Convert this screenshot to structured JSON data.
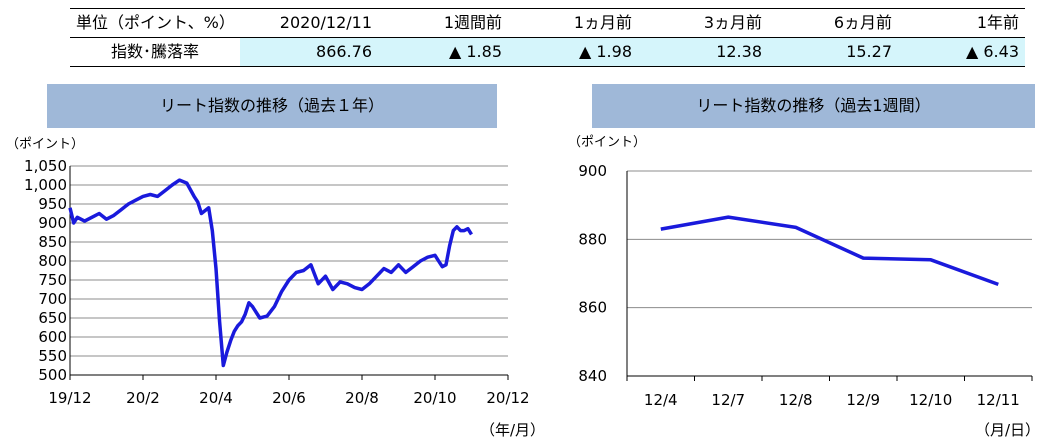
{
  "summary": {
    "headers": [
      "単位（ポイント、%）",
      "2020/12/11",
      "1週間前",
      "1ヵ月前",
      "3ヵ月前",
      "6ヵ月前",
      "1年前"
    ],
    "row_label": "指数･騰落率",
    "values": [
      "866.76",
      "▲ 1.85",
      "▲ 1.98",
      "12.38",
      "15.27",
      "▲ 6.43"
    ]
  },
  "chart_data": [
    {
      "type": "line",
      "title": "リート指数の推移（過去１年）",
      "ylabel": "（ポイント）",
      "xlabel": "（年/月）",
      "ylim": [
        500,
        1050
      ],
      "yticks": [
        "500",
        "550",
        "600",
        "650",
        "700",
        "750",
        "800",
        "850",
        "900",
        "950",
        "1,000",
        "1,050"
      ],
      "xticks": [
        "19/12",
        "20/2",
        "20/4",
        "20/6",
        "20/8",
        "20/10",
        "20/12"
      ],
      "grid": true,
      "color": "#1a1adc",
      "series": [
        {
          "x": [
            0,
            0.1,
            0.2,
            0.4,
            0.6,
            0.8,
            1.0,
            1.2,
            1.4,
            1.6,
            1.8,
            2.0,
            2.2,
            2.4,
            2.6,
            2.8,
            3.0,
            3.2,
            3.4,
            3.5,
            3.6,
            3.8,
            3.9,
            4.0,
            4.1,
            4.2,
            4.3,
            4.4,
            4.5,
            4.6,
            4.7,
            4.8,
            4.9,
            5.0,
            5.2,
            5.4,
            5.6,
            5.8,
            6.0,
            6.2,
            6.4,
            6.6,
            6.8,
            7.0,
            7.2,
            7.4,
            7.6,
            7.8,
            8.0,
            8.2,
            8.4,
            8.6,
            8.8,
            9.0,
            9.2,
            9.4,
            9.6,
            9.8,
            10.0,
            10.1,
            10.2,
            10.3,
            10.4,
            10.5,
            10.6,
            10.7,
            10.8,
            10.9,
            11.0
          ],
          "y": [
            940,
            900,
            915,
            905,
            915,
            925,
            910,
            920,
            935,
            950,
            960,
            970,
            975,
            970,
            985,
            1000,
            1013,
            1005,
            970,
            955,
            925,
            940,
            880,
            780,
            640,
            525,
            560,
            590,
            615,
            630,
            640,
            660,
            690,
            680,
            650,
            655,
            680,
            720,
            750,
            770,
            775,
            790,
            740,
            760,
            725,
            745,
            740,
            730,
            725,
            740,
            760,
            780,
            770,
            790,
            770,
            785,
            800,
            810,
            815,
            800,
            785,
            790,
            840,
            880,
            890,
            880,
            880,
            885,
            870
          ]
        }
      ]
    },
    {
      "type": "line",
      "title": "リート指数の推移（過去1週間）",
      "ylabel": "（ポイント）",
      "xlabel": "（月/日）",
      "ylim": [
        840,
        900
      ],
      "yticks": [
        "840",
        "860",
        "880",
        "900"
      ],
      "categories": [
        "12/4",
        "12/7",
        "12/8",
        "12/9",
        "12/10",
        "12/11"
      ],
      "grid": true,
      "color": "#1a1adc",
      "series": [
        {
          "values": [
            883.0,
            886.5,
            883.5,
            874.5,
            874.0,
            866.8
          ]
        }
      ]
    }
  ]
}
